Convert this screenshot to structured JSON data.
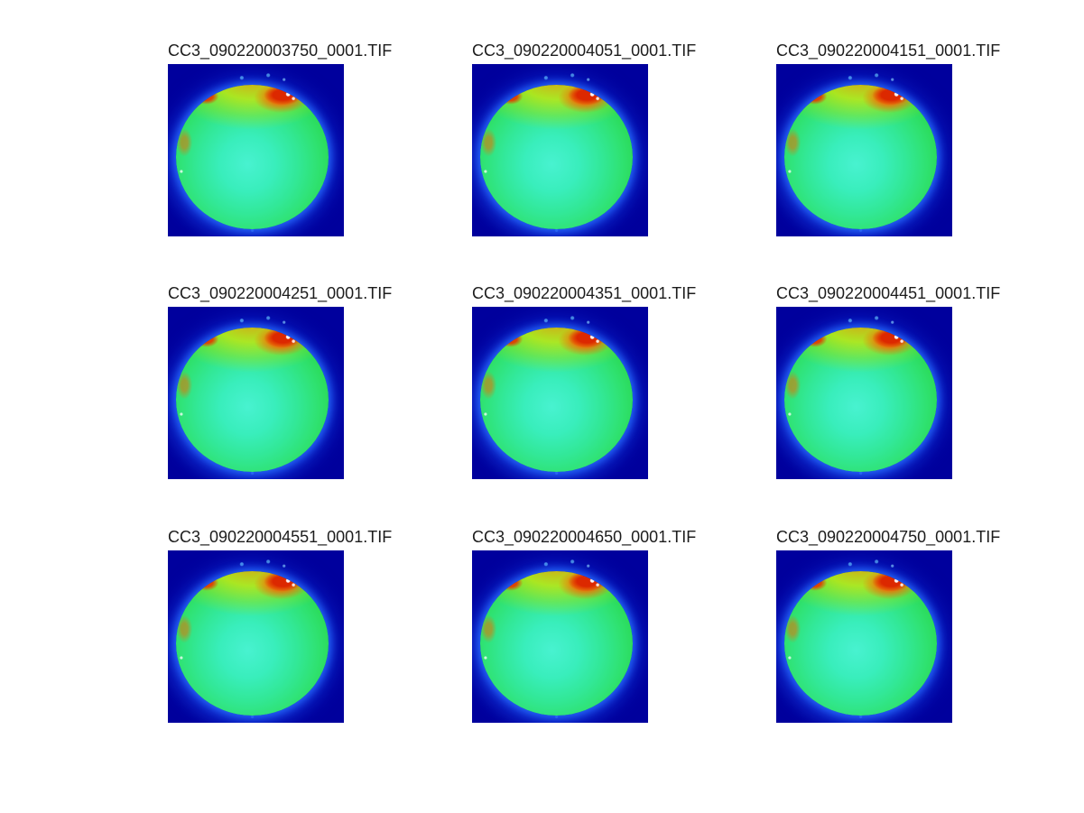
{
  "figure": {
    "background": "#ffffff",
    "grid": {
      "rows": 3,
      "cols": 3
    },
    "tiles": [
      {
        "title": "CC3_090220003750_0001.TIF"
      },
      {
        "title": "CC3_090220004051_0001.TIF"
      },
      {
        "title": "CC3_090220004151_0001.TIF"
      },
      {
        "title": "CC3_090220004251_0001.TIF"
      },
      {
        "title": "CC3_090220004351_0001.TIF"
      },
      {
        "title": "CC3_090220004451_0001.TIF"
      },
      {
        "title": "CC3_090220004551_0001.TIF"
      },
      {
        "title": "CC3_090220004650_0001.TIF"
      },
      {
        "title": "CC3_090220004750_0001.TIF"
      }
    ],
    "colors": {
      "frame_background": "#00009d",
      "disk_center_cyan": "#48f2d0",
      "disk_body_green": "#2fe271",
      "upper_band_yellow": "#dee800",
      "hotspot_red": "#dc2800",
      "halo_blue": "#2e6ce6",
      "speck_white": "#ffffff",
      "title_text": "#1c1c1c"
    }
  },
  "chart_data": [
    {
      "type": "heatmap",
      "title": "CC3_090220003750_0001.TIF",
      "colormap": "jet",
      "axes": "none (image plot, no ticks, no colorbar)",
      "content": "circular specimen on dark navy background; cyan-green interior, yellow-green upper rim, red hot spots upper-left and upper-right with small white specks, blue halo around edge"
    },
    {
      "type": "heatmap",
      "title": "CC3_090220004051_0001.TIF",
      "colormap": "jet",
      "axes": "none (image plot, no ticks, no colorbar)",
      "content": "same circular specimen, nearly identical frame of the time series"
    },
    {
      "type": "heatmap",
      "title": "CC3_090220004151_0001.TIF",
      "colormap": "jet",
      "axes": "none (image plot, no ticks, no colorbar)",
      "content": "same circular specimen, nearly identical frame of the time series"
    },
    {
      "type": "heatmap",
      "title": "CC3_090220004251_0001.TIF",
      "colormap": "jet",
      "axes": "none (image plot, no ticks, no colorbar)",
      "content": "same circular specimen, nearly identical frame of the time series"
    },
    {
      "type": "heatmap",
      "title": "CC3_090220004351_0001.TIF",
      "colormap": "jet",
      "axes": "none (image plot, no ticks, no colorbar)",
      "content": "same circular specimen, nearly identical frame of the time series"
    },
    {
      "type": "heatmap",
      "title": "CC3_090220004451_0001.TIF",
      "colormap": "jet",
      "axes": "none (image plot, no ticks, no colorbar)",
      "content": "same circular specimen, nearly identical frame of the time series"
    },
    {
      "type": "heatmap",
      "title": "CC3_090220004551_0001.TIF",
      "colormap": "jet",
      "axes": "none (image plot, no ticks, no colorbar)",
      "content": "same circular specimen, nearly identical frame of the time series"
    },
    {
      "type": "heatmap",
      "title": "CC3_090220004650_0001.TIF",
      "colormap": "jet",
      "axes": "none (image plot, no ticks, no colorbar)",
      "content": "same circular specimen, nearly identical frame of the time series"
    },
    {
      "type": "heatmap",
      "title": "CC3_090220004750_0001.TIF",
      "colormap": "jet",
      "axes": "none (image plot, no ticks, no colorbar)",
      "content": "same circular specimen, nearly identical frame of the time series"
    }
  ]
}
